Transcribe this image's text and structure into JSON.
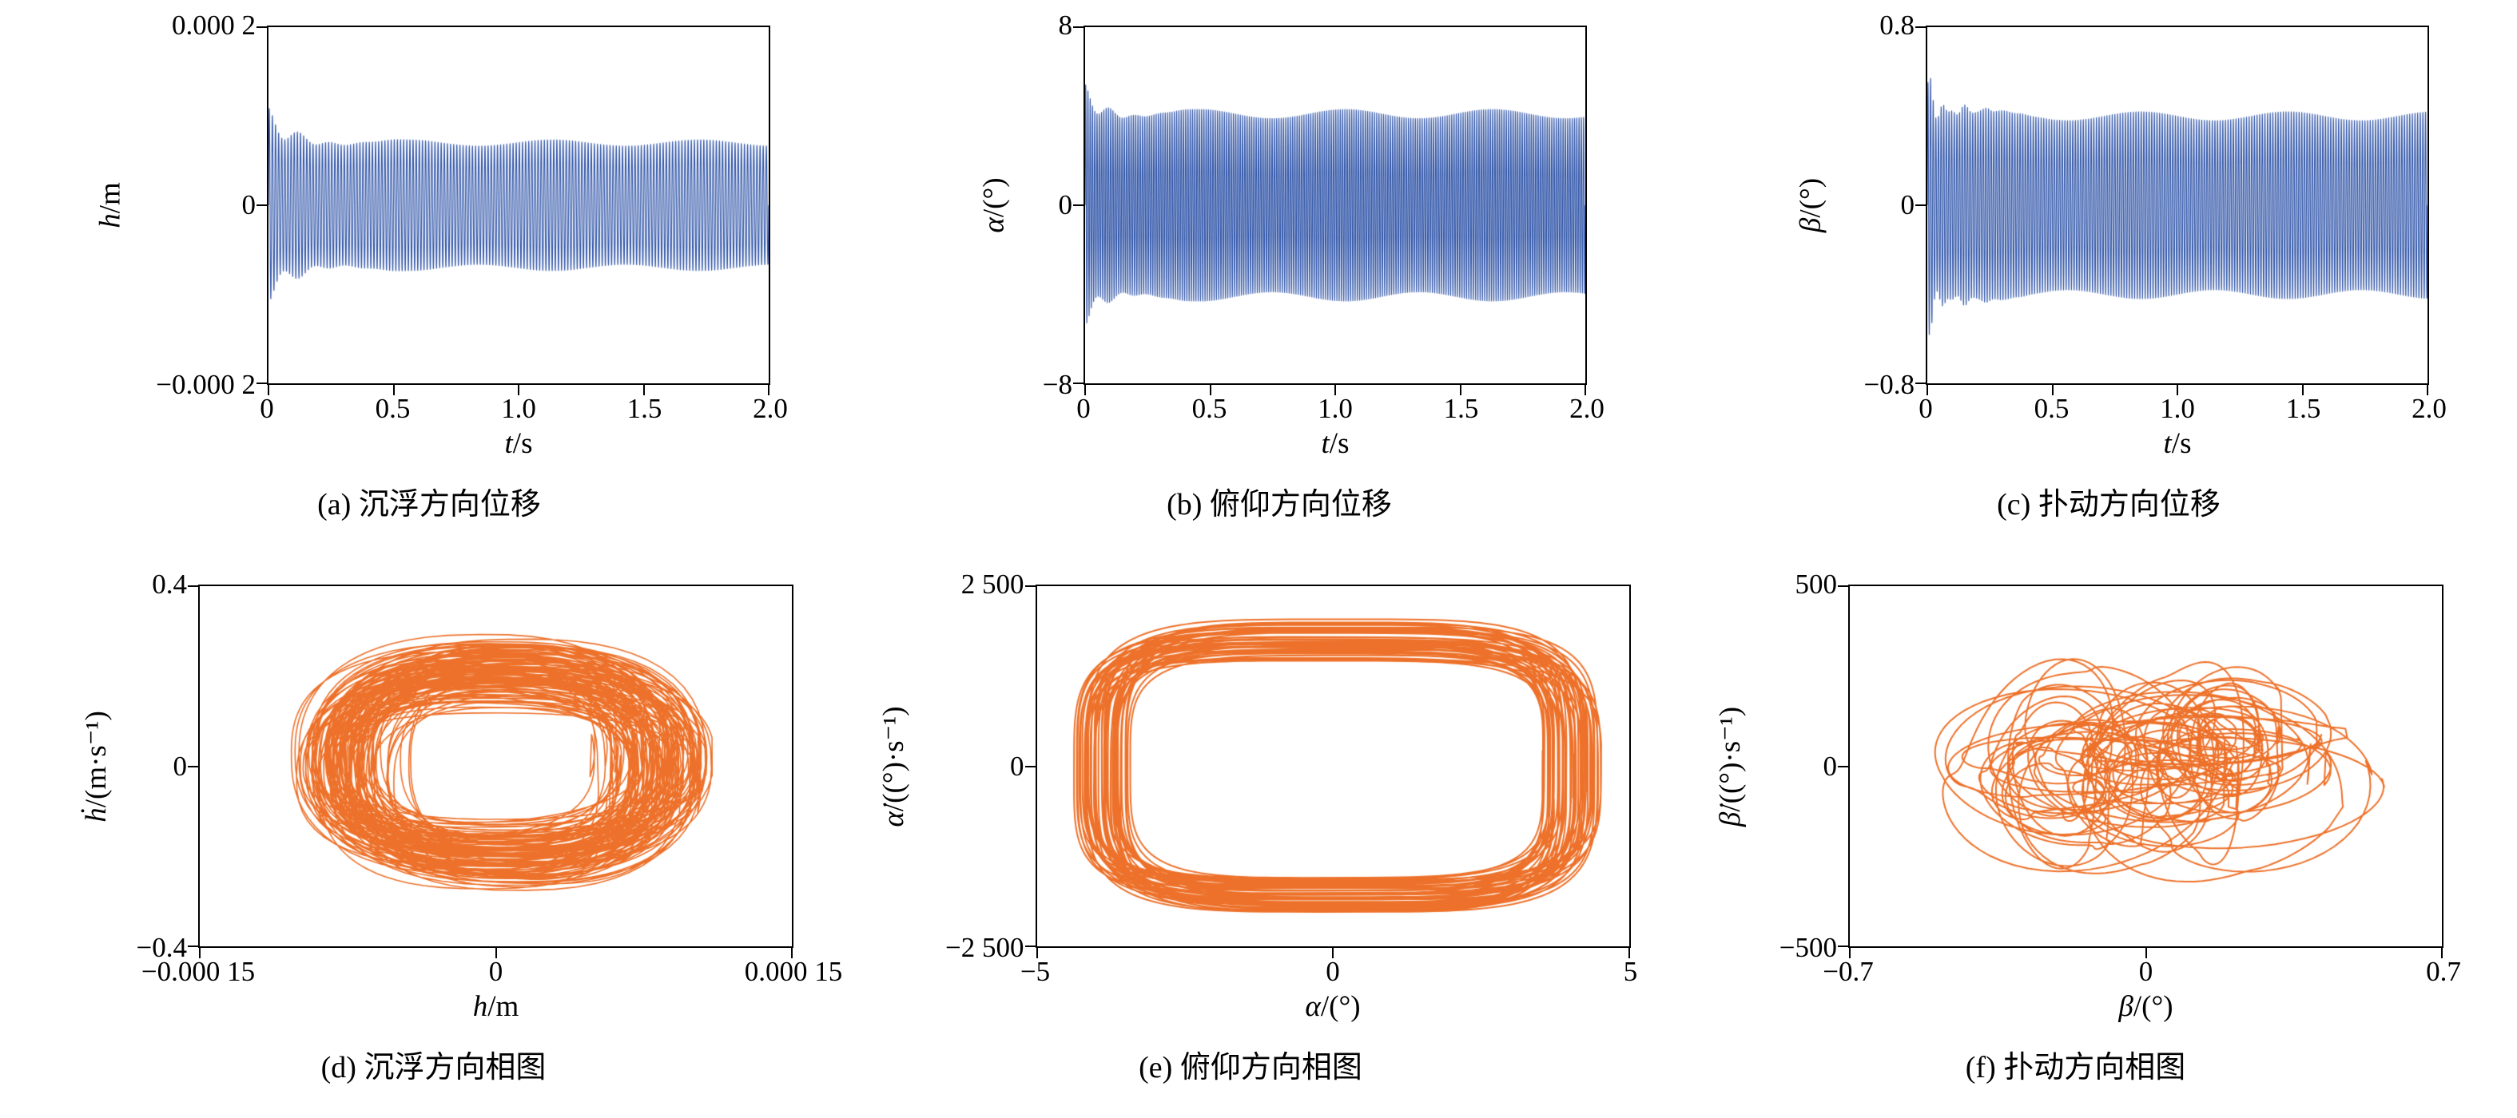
{
  "figure_colors": {
    "time_series": "#2f54a8",
    "phase_portrait": "#ed712a",
    "axis": "#000000"
  },
  "chart_data": [
    {
      "id": "a",
      "type": "line",
      "subtype": "time-series",
      "caption": "(a) 沉浮方向位移",
      "ylabel_var": "h",
      "ylabel_unit": "/m",
      "xlabel_var": "t",
      "xlabel_unit": "/s",
      "xlim": [
        0,
        2
      ],
      "ylim": [
        -0.0002,
        0.0002
      ],
      "xtick_labels": [
        "0",
        "0.5",
        "1.0",
        "1.5",
        "2.0"
      ],
      "ytick_labels": [
        "0.000 2",
        "0",
        "−0.000 2"
      ],
      "line_color": "#2f54a8",
      "stroke_width": 1.1,
      "description": "dense oscillation, steady amplitude ±0.00007 m, initial transient peak ±0.0001 m decaying by t≈0.45 s",
      "gen": {
        "kind": "osc",
        "seed": 2,
        "freq": 80,
        "steady": 7e-05,
        "tg": 0.5,
        "tau": 0.12,
        "beat": 8,
        "rough": 0
      }
    },
    {
      "id": "b",
      "type": "line",
      "subtype": "time-series",
      "caption": "(b) 俯仰方向位移",
      "ylabel_var": "α",
      "ylabel_unit": "/(°)",
      "xlabel_var": "t",
      "xlabel_unit": "/s",
      "xlim": [
        0,
        2
      ],
      "ylim": [
        -8,
        8
      ],
      "xtick_labels": [
        "0",
        "0.5",
        "1.0",
        "1.5",
        "2.0"
      ],
      "ytick_labels": [
        "8",
        "0",
        "−8"
      ],
      "line_color": "#2f54a8",
      "stroke_width": 1.1,
      "description": "dense oscillation, steady amplitude ±4.1°, initial transient peak ±5.4° decaying by t≈0.3 s",
      "gen": {
        "kind": "osc",
        "seed": 3,
        "freq": 110,
        "steady": 4.1,
        "tg": 0.32,
        "tau": 0.09,
        "beat": 10,
        "rough": 0
      }
    },
    {
      "id": "c",
      "type": "line",
      "subtype": "time-series",
      "caption": "(c) 扑动方向位移",
      "ylabel_var": "β",
      "ylabel_unit": "/(°)",
      "xlabel_var": "t",
      "xlabel_unit": "/s",
      "xlim": [
        0,
        2
      ],
      "ylim": [
        -0.8,
        0.8
      ],
      "xtick_labels": [
        "0",
        "0.5",
        "1.0",
        "1.5",
        "2.0"
      ],
      "ytick_labels": [
        "0.8",
        "0",
        "−0.8"
      ],
      "line_color": "#2f54a8",
      "stroke_width": 1.1,
      "description": "dense oscillation, steady amplitude ±0.4°, irregular transient peak ±0.58° for t<0.3 s",
      "gen": {
        "kind": "osc",
        "seed": 5,
        "freq": 95,
        "steady": 0.4,
        "tg": 0.38,
        "tau": 0.1,
        "beat": 13,
        "rough": 0.25
      }
    },
    {
      "id": "d",
      "type": "line",
      "subtype": "phase-portrait",
      "caption": "(d) 沉浮方向相图",
      "ylabel_var": "ḣ",
      "ylabel_unit": "/(m·s⁻¹)",
      "xlabel_var": "h",
      "xlabel_unit": "/m",
      "xlim": [
        -0.00015,
        0.00015
      ],
      "ylim": [
        -0.4,
        0.4
      ],
      "xtick_labels": [
        "−0.000 15",
        "0",
        "0.000 15"
      ],
      "ytick_labels": [
        "0.4",
        "0",
        "−0.4"
      ],
      "line_color": "#ed712a",
      "stroke_width": 1.6,
      "description": "densely filled quasi-periodic orbit cloud, extent ≈ ±0.0001 m × ±0.3 m·s⁻¹",
      "gen": {
        "kind": "phase",
        "seed": 7,
        "loops": 120,
        "pts": 80,
        "a0": 4.2e-05,
        "a1": 5.8e-05,
        "apow": 0.6,
        "b0": 0.13,
        "b1": 0.15,
        "bpow": 1,
        "p": 0.8,
        "warp": 0.25,
        "cw": 2e-05,
        "cmax": 1.2e-05,
        "ch": 0.05,
        "cymax": 0.03
      }
    },
    {
      "id": "e",
      "type": "line",
      "subtype": "phase-portrait",
      "caption": "(e) 俯仰方向相图",
      "ylabel_var": "α̇",
      "ylabel_unit": "/((°)·s⁻¹)",
      "xlabel_var": "α",
      "xlabel_unit": "/(°)",
      "xlim": [
        -5,
        5
      ],
      "ylim": [
        -2500,
        2500
      ],
      "xtick_labels": [
        "−5",
        "0",
        "5"
      ],
      "ytick_labels": [
        "2 500",
        "0",
        "−2 500"
      ],
      "line_color": "#ed712a",
      "stroke_width": 2,
      "description": "hollow rounded-rectangle limit-cycle band, outer extent ≈ ±4.6° × ±2050 (°)·s⁻¹, empty core",
      "gen": {
        "kind": "phase",
        "seed": 3,
        "loops": 48,
        "pts": 200,
        "a0": 3.45,
        "a1": 1.05,
        "apow": 1,
        "b0": 1400,
        "b1": 650,
        "bpow": 1,
        "p": 0.48,
        "warp": 0.06,
        "cw": 0.1,
        "cmax": 0.08,
        "ch": 40,
        "cymax": 30
      }
    },
    {
      "id": "f",
      "type": "line",
      "subtype": "phase-portrait",
      "caption": "(f) 扑动方向相图",
      "ylabel_var": "β̇",
      "ylabel_unit": "/((°)·s⁻¹)",
      "xlabel_var": "β",
      "xlabel_unit": "/(°)",
      "xlim": [
        -0.7,
        0.7
      ],
      "ylim": [
        -500,
        500
      ],
      "xtick_labels": [
        "−0.7",
        "0",
        "0.7"
      ],
      "ytick_labels": [
        "500",
        "0",
        "−500"
      ],
      "line_color": "#ed712a",
      "stroke_width": 2,
      "description": "chaotic tangle of loops of varying size, extent ≈ ±0.65° × ±370 (°)·s⁻¹, dense near origin",
      "gen": {
        "kind": "phase",
        "seed": 11,
        "loops": 58,
        "pts": 110,
        "a0": 0.06,
        "a1": 0.42,
        "apow": 2,
        "b0": 40,
        "b1": 260,
        "bpow": 1.8,
        "p": 1,
        "warp": 0.45,
        "cw": 0.2,
        "cmax": 0.2,
        "ch": 110,
        "cymax": 90
      }
    }
  ]
}
